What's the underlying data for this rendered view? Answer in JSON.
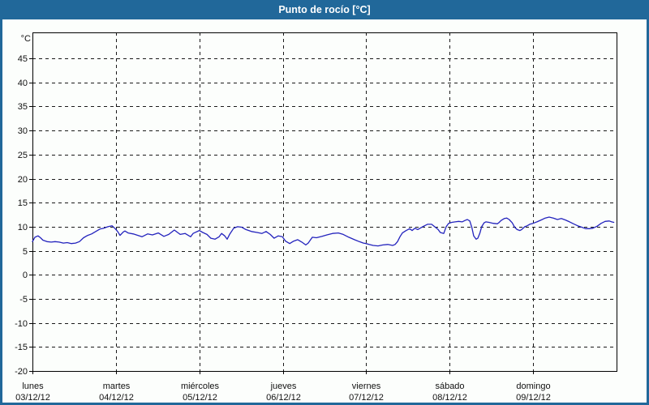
{
  "window": {
    "title": "Punto de rocío [°C]"
  },
  "colors": {
    "frame_blue": "#21689a",
    "title_text": "#ffffff",
    "content_bg": "#fcfefc",
    "grid_black": "#1a1a1a",
    "series_blue": "#2323bd"
  },
  "chart_data": {
    "type": "line",
    "title": "Punto de rocío [°C]",
    "y_unit_label": "°C",
    "ylim": [
      -20,
      50.4
    ],
    "yticks": [
      45,
      40,
      35,
      30,
      25,
      20,
      15,
      10,
      5,
      0,
      -5,
      -10,
      -15,
      -20
    ],
    "x_range_hours": [
      0,
      168
    ],
    "grid": "dashed horizontal every 5°C and vertical at each day",
    "legend": "none",
    "x_days": [
      {
        "name": "lunes",
        "date": "03/12/12"
      },
      {
        "name": "martes",
        "date": "04/12/12"
      },
      {
        "name": "miércoles",
        "date": "05/12/12"
      },
      {
        "name": "jueves",
        "date": "06/12/12"
      },
      {
        "name": "viernes",
        "date": "07/12/12"
      },
      {
        "name": "sábado",
        "date": "08/12/12"
      },
      {
        "name": "domingo",
        "date": "09/12/12"
      }
    ],
    "series": [
      {
        "name": "Punto de rocío",
        "color": "#2323bd",
        "units": "°C",
        "points_hours_value": [
          [
            0,
            6.9
          ],
          [
            0.7,
            7.8
          ],
          [
            1.6,
            8.1
          ],
          [
            2.3,
            7.7
          ],
          [
            3.0,
            7.2
          ],
          [
            4.2,
            6.9
          ],
          [
            5.4,
            6.8
          ],
          [
            6.5,
            6.9
          ],
          [
            7.7,
            6.8
          ],
          [
            8.9,
            6.6
          ],
          [
            10.0,
            6.7
          ],
          [
            11.2,
            6.5
          ],
          [
            12.4,
            6.6
          ],
          [
            13.5,
            6.9
          ],
          [
            14.7,
            7.7
          ],
          [
            15.9,
            8.2
          ],
          [
            17.0,
            8.5
          ],
          [
            18.2,
            9.0
          ],
          [
            19.4,
            9.5
          ],
          [
            20.5,
            9.7
          ],
          [
            21.7,
            10.0
          ],
          [
            22.9,
            10.2
          ],
          [
            23.8,
            9.6
          ],
          [
            24.5,
            9.0
          ],
          [
            25.2,
            8.2
          ],
          [
            26.1,
            8.9
          ],
          [
            26.6,
            9.1
          ],
          [
            27.5,
            8.7
          ],
          [
            29.0,
            8.5
          ],
          [
            29.9,
            8.3
          ],
          [
            31.5,
            7.9
          ],
          [
            33.1,
            8.5
          ],
          [
            34.5,
            8.3
          ],
          [
            36.2,
            8.7
          ],
          [
            37.8,
            8.0
          ],
          [
            39.2,
            8.4
          ],
          [
            40.8,
            9.3
          ],
          [
            42.5,
            8.4
          ],
          [
            43.9,
            8.6
          ],
          [
            45.5,
            7.9
          ],
          [
            46.2,
            8.6
          ],
          [
            48.0,
            9.2
          ],
          [
            49.0,
            8.8
          ],
          [
            50.2,
            8.4
          ],
          [
            51.3,
            7.6
          ],
          [
            52.5,
            7.4
          ],
          [
            53.7,
            7.9
          ],
          [
            54.4,
            8.6
          ],
          [
            55.3,
            8.1
          ],
          [
            56.0,
            7.4
          ],
          [
            56.7,
            8.4
          ],
          [
            57.9,
            9.7
          ],
          [
            59.0,
            10.0
          ],
          [
            60.2,
            9.9
          ],
          [
            61.4,
            9.4
          ],
          [
            63.0,
            9.0
          ],
          [
            64.6,
            8.8
          ],
          [
            66.0,
            8.6
          ],
          [
            67.2,
            9.0
          ],
          [
            68.4,
            8.4
          ],
          [
            69.5,
            7.6
          ],
          [
            70.7,
            8.1
          ],
          [
            71.9,
            7.9
          ],
          [
            72.8,
            7.0
          ],
          [
            74.0,
            6.5
          ],
          [
            75.1,
            7.0
          ],
          [
            76.3,
            7.3
          ],
          [
            77.5,
            6.8
          ],
          [
            78.6,
            6.2
          ],
          [
            79.3,
            6.6
          ],
          [
            80.5,
            7.8
          ],
          [
            81.7,
            7.7
          ],
          [
            83.3,
            8.0
          ],
          [
            84.7,
            8.3
          ],
          [
            86.3,
            8.6
          ],
          [
            88.0,
            8.7
          ],
          [
            89.4,
            8.4
          ],
          [
            91.0,
            7.8
          ],
          [
            92.6,
            7.3
          ],
          [
            94.0,
            6.9
          ],
          [
            95.2,
            6.6
          ],
          [
            96.0,
            6.5
          ],
          [
            96.8,
            6.3
          ],
          [
            98.0,
            6.1
          ],
          [
            99.4,
            6.0
          ],
          [
            100.8,
            6.2
          ],
          [
            102.2,
            6.3
          ],
          [
            103.6,
            6.1
          ],
          [
            104.3,
            6.3
          ],
          [
            105.0,
            6.9
          ],
          [
            105.7,
            7.9
          ],
          [
            106.4,
            8.7
          ],
          [
            107.5,
            9.2
          ],
          [
            108.5,
            9.6
          ],
          [
            109.2,
            9.2
          ],
          [
            110.0,
            9.7
          ],
          [
            110.8,
            9.4
          ],
          [
            111.5,
            9.7
          ],
          [
            112.5,
            10.1
          ],
          [
            113.6,
            10.5
          ],
          [
            114.8,
            10.5
          ],
          [
            115.5,
            10.1
          ],
          [
            116.7,
            9.4
          ],
          [
            117.3,
            8.8
          ],
          [
            118.3,
            8.6
          ],
          [
            119.0,
            10.0
          ],
          [
            119.7,
            10.7
          ],
          [
            120.6,
            10.9
          ],
          [
            121.6,
            11.0
          ],
          [
            122.6,
            11.1
          ],
          [
            123.6,
            11.0
          ],
          [
            124.4,
            11.3
          ],
          [
            125.1,
            11.5
          ],
          [
            125.8,
            11.2
          ],
          [
            126.4,
            9.8
          ],
          [
            126.9,
            8.1
          ],
          [
            127.6,
            7.4
          ],
          [
            128.1,
            7.6
          ],
          [
            128.7,
            8.7
          ],
          [
            129.2,
            10.0
          ],
          [
            129.9,
            10.8
          ],
          [
            130.4,
            11.0
          ],
          [
            131.3,
            10.9
          ],
          [
            132.5,
            10.7
          ],
          [
            133.7,
            10.6
          ],
          [
            134.1,
            10.8
          ],
          [
            134.8,
            11.3
          ],
          [
            135.7,
            11.7
          ],
          [
            136.4,
            11.8
          ],
          [
            137.1,
            11.5
          ],
          [
            138.0,
            10.8
          ],
          [
            138.7,
            9.9
          ],
          [
            139.4,
            9.4
          ],
          [
            140.2,
            9.2
          ],
          [
            140.7,
            9.4
          ],
          [
            141.6,
            10.0
          ],
          [
            142.3,
            10.2
          ],
          [
            143.0,
            10.5
          ],
          [
            144.0,
            10.7
          ],
          [
            145.1,
            11.0
          ],
          [
            146.3,
            11.4
          ],
          [
            147.5,
            11.8
          ],
          [
            148.6,
            12.0
          ],
          [
            149.8,
            11.8
          ],
          [
            151.0,
            11.5
          ],
          [
            152.1,
            11.7
          ],
          [
            153.3,
            11.4
          ],
          [
            154.5,
            11.0
          ],
          [
            155.6,
            10.6
          ],
          [
            156.8,
            10.2
          ],
          [
            158.0,
            9.9
          ],
          [
            159.1,
            9.6
          ],
          [
            160.2,
            9.6
          ],
          [
            161.2,
            9.7
          ],
          [
            162.4,
            10.1
          ],
          [
            163.6,
            10.7
          ],
          [
            164.7,
            11.1
          ],
          [
            165.9,
            11.2
          ],
          [
            166.6,
            11.0
          ],
          [
            167.2,
            10.9
          ]
        ]
      }
    ]
  }
}
